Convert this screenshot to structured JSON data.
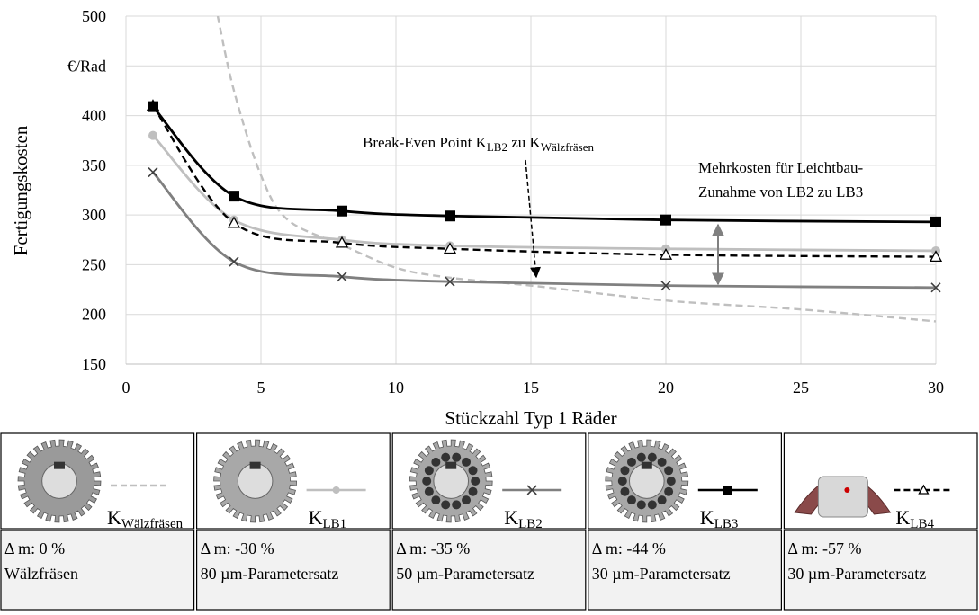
{
  "chart_data": {
    "type": "line",
    "y_label": "Fertigungskosten",
    "x_label": "Stückzahl Typ 1 Räder",
    "xlim": [
      0,
      30
    ],
    "xticks": [
      0,
      5,
      10,
      15,
      20,
      25,
      30
    ],
    "ylim": [
      150,
      500
    ],
    "yticks": [
      150,
      200,
      250,
      300,
      350,
      400,
      {
        "value": 450,
        "label": "€/Rad"
      },
      500
    ],
    "grid": true,
    "series": [
      {
        "name": "K",
        "subscript": "Wälzfräsen",
        "color": "#bfbfbf",
        "dash": true,
        "marker": null,
        "x": [
          3.4,
          4,
          5,
          6,
          8,
          10,
          12,
          15,
          20,
          25,
          30
        ],
        "values": [
          500,
          425,
          340,
          295,
          270,
          247,
          237,
          229,
          214,
          205,
          193
        ],
        "delta_m": "Δ m: 0 %",
        "parameter": "Wälzfräsen"
      },
      {
        "name": "K",
        "subscript": "LB1",
        "color": "#bfbfbf",
        "dash": false,
        "marker": "circle",
        "x": [
          1,
          4,
          8,
          12,
          20,
          30
        ],
        "values": [
          380,
          295,
          275,
          269,
          266,
          264
        ],
        "delta_m": "Δ m: -30 %",
        "parameter": "80 µm-Parametersatz"
      },
      {
        "name": "K",
        "subscript": "LB2",
        "color": "#808080",
        "dash": false,
        "marker": "x",
        "x": [
          1,
          4,
          8,
          12,
          20,
          30
        ],
        "values": [
          343,
          253,
          238,
          233,
          229,
          227
        ],
        "delta_m": "Δ m: -35 %",
        "parameter": "50 µm-Parametersatz"
      },
      {
        "name": "K",
        "subscript": "LB3",
        "color": "#000000",
        "dash": false,
        "marker": "square",
        "x": [
          1,
          4,
          8,
          12,
          20,
          30
        ],
        "values": [
          409,
          319,
          304,
          299,
          295,
          293
        ],
        "delta_m": "Δ m: -44 %",
        "parameter": "30 µm-Parametersatz"
      },
      {
        "name": "K",
        "subscript": "LB4",
        "color": "#000000",
        "dash": true,
        "marker": "triangle",
        "x": [
          1,
          4,
          8,
          12,
          20,
          30
        ],
        "values": [
          410,
          292,
          272,
          266,
          260,
          258
        ],
        "delta_m": "Δ m: -57 %",
        "parameter": "30 µm-Parametersatz"
      }
    ],
    "annotations": [
      {
        "parts": [
          "Break-Even Point K",
          "LB2",
          " zu K",
          "Wälzfräsen"
        ]
      },
      {
        "lines": [
          "Mehrkosten für Leichtbau-",
          "Zunahme von LB2 zu LB3"
        ]
      }
    ]
  }
}
